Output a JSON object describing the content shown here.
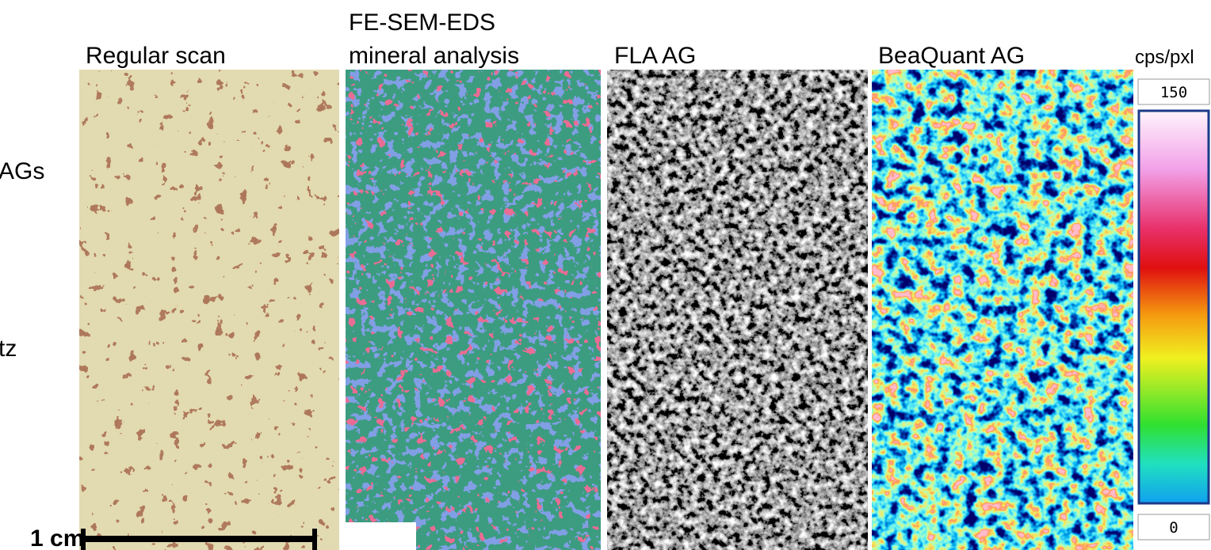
{
  "panels": [
    {
      "title_lines": [
        "Regular scan"
      ]
    },
    {
      "title_lines": [
        "FE-SEM-EDS",
        "mineral analysis"
      ]
    },
    {
      "title_lines": [
        "FLA AG"
      ]
    },
    {
      "title_lines": [
        "BeaQuant AG"
      ]
    }
  ],
  "side_labels": [
    "AGs",
    "tz"
  ],
  "colorbar": {
    "unit": "cps/pxl",
    "max": 150,
    "min": 0
  },
  "scale_bar": "1 cm"
}
